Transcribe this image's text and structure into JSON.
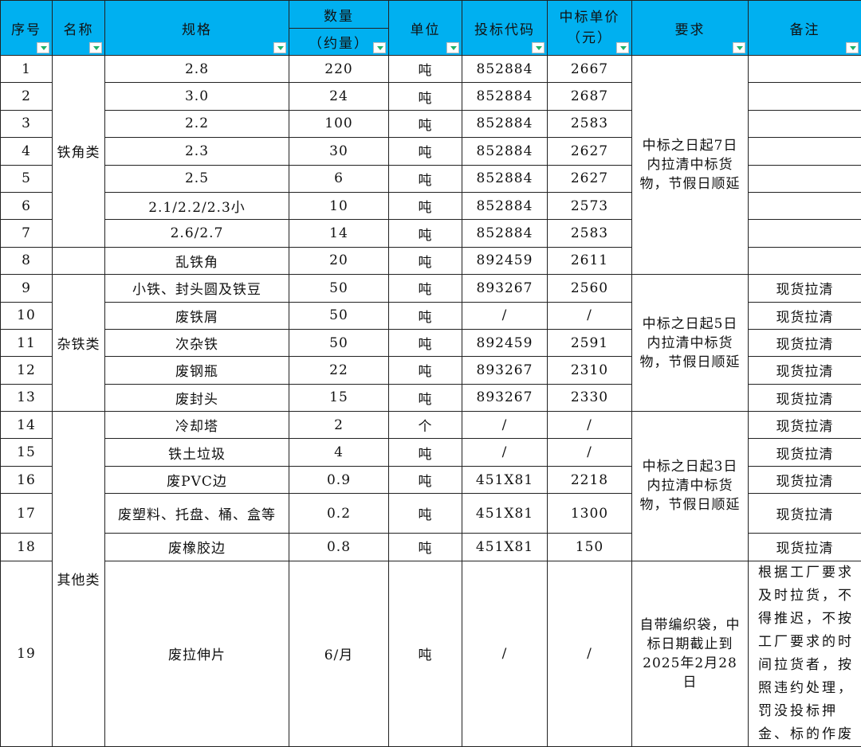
{
  "header": {
    "seq": "序号",
    "name": "名称",
    "spec": "规格",
    "qty_top": "数量",
    "qty_bottom": "（约量）",
    "unit": "单位",
    "code": "投标代码",
    "price": "中标单价（元）",
    "req": "要求",
    "note": "备注"
  },
  "colors": {
    "header_bg": "#00b0f0",
    "filter_arrow": "#1fb36b"
  },
  "rows": [
    {
      "seq": "1",
      "spec": "2.8",
      "qty": "220",
      "unit": "吨",
      "code": "852884",
      "price": "2667",
      "note": ""
    },
    {
      "seq": "2",
      "spec": "3.0",
      "qty": "24",
      "unit": "吨",
      "code": "852884",
      "price": "2687",
      "note": ""
    },
    {
      "seq": "3",
      "spec": "2.2",
      "qty": "100",
      "unit": "吨",
      "code": "852884",
      "price": "2583",
      "note": ""
    },
    {
      "seq": "4",
      "spec": "2.3",
      "qty": "30",
      "unit": "吨",
      "code": "852884",
      "price": "2627",
      "note": ""
    },
    {
      "seq": "5",
      "spec": "2.5",
      "qty": "6",
      "unit": "吨",
      "code": "852884",
      "price": "2627",
      "note": ""
    },
    {
      "seq": "6",
      "spec": "2.1/2.2/2.3小",
      "qty": "10",
      "unit": "吨",
      "code": "852884",
      "price": "2573",
      "note": ""
    },
    {
      "seq": "7",
      "spec": "2.6/2.7",
      "qty": "14",
      "unit": "吨",
      "code": "852884",
      "price": "2583",
      "note": ""
    },
    {
      "seq": "8",
      "spec": "乱铁角",
      "qty": "20",
      "unit": "吨",
      "code": "892459",
      "price": "2611",
      "note": ""
    },
    {
      "seq": "9",
      "spec": "小铁、封头圆及铁豆",
      "qty": "50",
      "unit": "吨",
      "code": "893267",
      "price": "2560",
      "note": "现货拉清"
    },
    {
      "seq": "10",
      "spec": "废铁屑",
      "qty": "50",
      "unit": "吨",
      "code": "/",
      "price": "/",
      "note": "现货拉清"
    },
    {
      "seq": "11",
      "spec": "次杂铁",
      "qty": "50",
      "unit": "吨",
      "code": "892459",
      "price": "2591",
      "note": "现货拉清"
    },
    {
      "seq": "12",
      "spec": "废钢瓶",
      "qty": "22",
      "unit": "吨",
      "code": "893267",
      "price": "2310",
      "note": "现货拉清"
    },
    {
      "seq": "13",
      "spec": "废封头",
      "qty": "15",
      "unit": "吨",
      "code": "893267",
      "price": "2330",
      "note": "现货拉清"
    },
    {
      "seq": "14",
      "spec": "冷却塔",
      "qty": "2",
      "unit": "个",
      "code": "/",
      "price": "/",
      "note": "现货拉清"
    },
    {
      "seq": "15",
      "spec": "铁土垃圾",
      "qty": "4",
      "unit": "吨",
      "code": "/",
      "price": "/",
      "note": "现货拉清"
    },
    {
      "seq": "16",
      "spec": "废PVC边",
      "qty": "0.9",
      "unit": "吨",
      "code": "451X81",
      "price": "2218",
      "note": "现货拉清"
    },
    {
      "seq": "17",
      "spec": "废塑料、托盘、桶、盒等",
      "qty": "0.2",
      "unit": "吨",
      "code": "451X81",
      "price": "1300",
      "note": "现货拉清"
    },
    {
      "seq": "18",
      "spec": "废橡胶边",
      "qty": "0.8",
      "unit": "吨",
      "code": "451X81",
      "price": "150",
      "note": "现货拉清"
    },
    {
      "seq": "19",
      "spec": "废拉伸片",
      "qty": "6/月",
      "unit": "吨",
      "code": "/",
      "price": "/",
      "note": "根据工厂要求及时拉货，不得推迟，不按工厂要求的时间拉货者，按照违约处理，罚没投标押金、标的作废"
    }
  ],
  "name_groups": [
    {
      "label": "铁角类",
      "from": 1,
      "to": 7
    },
    {
      "label": "",
      "from": 8,
      "to": 8
    },
    {
      "label": "杂铁类",
      "from": 9,
      "to": 13
    },
    {
      "label": "其他类",
      "from": 14,
      "to": 19
    }
  ],
  "req_groups": [
    {
      "label": "中标之日起7日内拉清中标货物，节假日顺延",
      "from": 1,
      "to": 8
    },
    {
      "label": "中标之日起5日内拉清中标货物，节假日顺延",
      "from": 9,
      "to": 13
    },
    {
      "label": "中标之日起3日内拉清中标货物，节假日顺延",
      "from": 14,
      "to": 18
    },
    {
      "label": "自带编织袋，中标日期截止到2025年2月28日",
      "from": 19,
      "to": 19
    }
  ]
}
